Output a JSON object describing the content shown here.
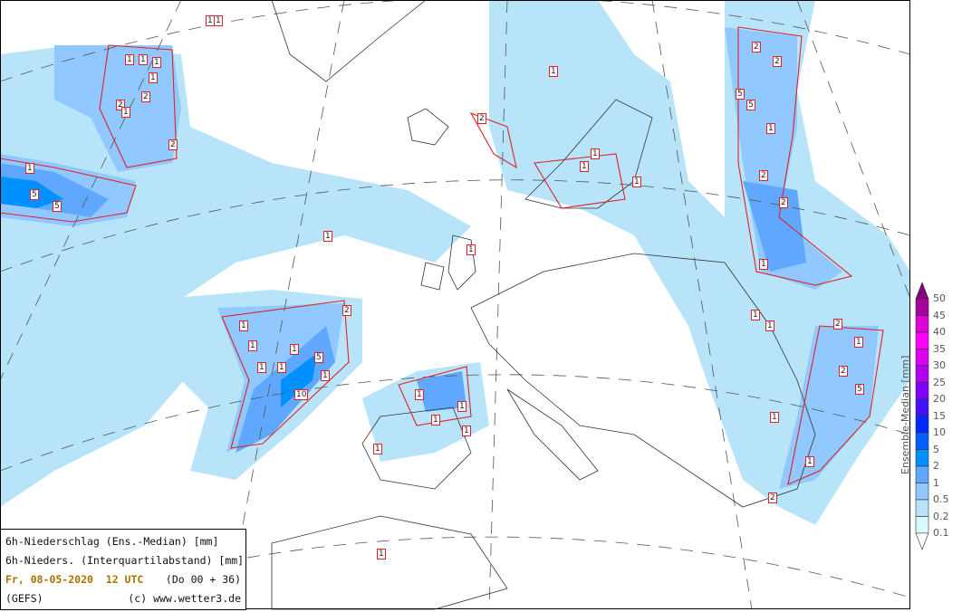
{
  "info": {
    "line1": "6h-Niederschlag (Ens.-Median) [mm]",
    "line2": "6h-Nieders. (Interquartilabstand) [mm]",
    "date": "Fr, 08-05-2020  12 UTC",
    "run": "(Do 00 + 36)",
    "model": "(GEFS)",
    "copyright": "(c) www.wetter3.de"
  },
  "colorbar": {
    "title": "Ensemble-Median [mm]",
    "ticks": [
      "50",
      "45",
      "40",
      "35",
      "30",
      "25",
      "20",
      "15",
      "10",
      "5",
      "2",
      "1",
      "0.5",
      "0.2",
      "0.1"
    ],
    "colors": [
      "#84007c",
      "#a8009c",
      "#e000d8",
      "#ff00ff",
      "#dc00f0",
      "#b000f0",
      "#8000ff",
      "#4010ff",
      "#0028ff",
      "#0060ff",
      "#0090ff",
      "#60a8ff",
      "#90c8ff",
      "#b8e4fa",
      "#d8fcfc",
      "#ffffff"
    ]
  },
  "map": {
    "contour_color": "#e0202a",
    "contour_labels": [
      "1",
      "1",
      "1",
      "2",
      "1",
      "2",
      "1",
      "2",
      "1",
      "5",
      "5",
      "1",
      "1",
      "2",
      "2",
      "5",
      "5",
      "10",
      "1",
      "1",
      "2",
      "1",
      "1",
      "1",
      "1",
      "1",
      "1",
      "1",
      "2",
      "1",
      "1",
      "1",
      "2",
      "5",
      "1",
      "2",
      "1",
      "2",
      "1",
      "1",
      "1",
      "2",
      "5",
      "1",
      "2",
      "1",
      "1",
      "1",
      "1",
      "1",
      "1",
      "1"
    ]
  }
}
